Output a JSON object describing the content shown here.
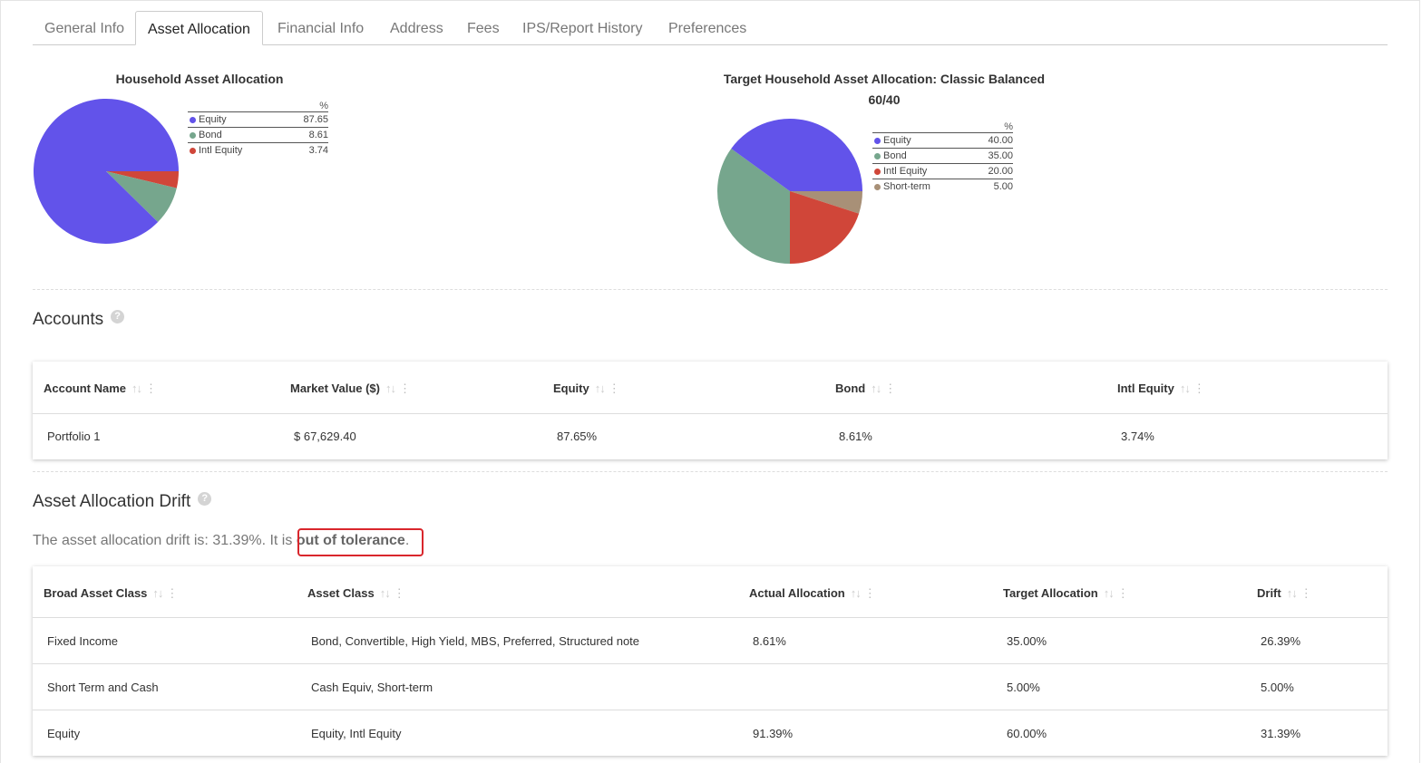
{
  "tabs": [
    {
      "label": "General Info",
      "active": false
    },
    {
      "label": "Asset Allocation",
      "active": true
    },
    {
      "label": "Financial Info",
      "active": false
    },
    {
      "label": "Address",
      "active": false
    },
    {
      "label": "Fees",
      "active": false
    },
    {
      "label": "IPS/Report History",
      "active": false
    },
    {
      "label": "Preferences",
      "active": false
    }
  ],
  "household_chart": {
    "title": "Household Asset Allocation",
    "pct_header": "%"
  },
  "target_chart": {
    "title_line1": "Target Household Asset Allocation: Classic Balanced",
    "title_line2": "60/40",
    "pct_header": "%"
  },
  "chart_data": [
    {
      "type": "pie",
      "title": "Household Asset Allocation",
      "slices": [
        {
          "label": "Equity",
          "value": 87.65,
          "display": "87.65",
          "color": "#6253ea"
        },
        {
          "label": "Bond",
          "value": 8.61,
          "display": "8.61",
          "color": "#76a68d"
        },
        {
          "label": "Intl Equity",
          "value": 3.74,
          "display": "3.74",
          "color": "#d04639"
        }
      ]
    },
    {
      "type": "pie",
      "title": "Target Household Asset Allocation: Classic Balanced 60/40",
      "slices": [
        {
          "label": "Equity",
          "value": 40.0,
          "display": "40.00",
          "color": "#6253ea"
        },
        {
          "label": "Bond",
          "value": 35.0,
          "display": "35.00",
          "color": "#76a68d"
        },
        {
          "label": "Intl Equity",
          "value": 20.0,
          "display": "20.00",
          "color": "#d04639"
        },
        {
          "label": "Short-term",
          "value": 5.0,
          "display": "5.00",
          "color": "#a89077"
        }
      ]
    }
  ],
  "accounts": {
    "title": "Accounts",
    "help": "?",
    "columns": [
      "Account Name",
      "Market Value ($)",
      "Equity",
      "Bond",
      "Intl Equity"
    ],
    "rows": [
      [
        "Portfolio 1",
        "$ 67,629.40",
        "87.65%",
        "8.61%",
        "3.74%"
      ]
    ]
  },
  "drift": {
    "title": "Asset Allocation Drift",
    "help": "?",
    "sentence_prefix": "The asset allocation drift is: 31.39%. It is ",
    "status": "out of tolerance",
    "sentence_suffix": ".",
    "columns": [
      "Broad Asset Class",
      "Asset Class",
      "Actual Allocation",
      "Target Allocation",
      "Drift"
    ],
    "rows": [
      [
        "Fixed Income",
        "Bond, Convertible, High Yield, MBS, Preferred, Structured note",
        "8.61%",
        "35.00%",
        "26.39%"
      ],
      [
        "Short Term and Cash",
        "Cash Equiv, Short-term",
        "",
        "5.00%",
        "5.00%"
      ],
      [
        "Equity",
        "Equity, Intl Equity",
        "91.39%",
        "60.00%",
        "31.39%"
      ]
    ]
  },
  "icons": {
    "sort": "sort-arrows-icon",
    "menu": "kebab-menu-icon",
    "help": "help-circle-icon"
  }
}
